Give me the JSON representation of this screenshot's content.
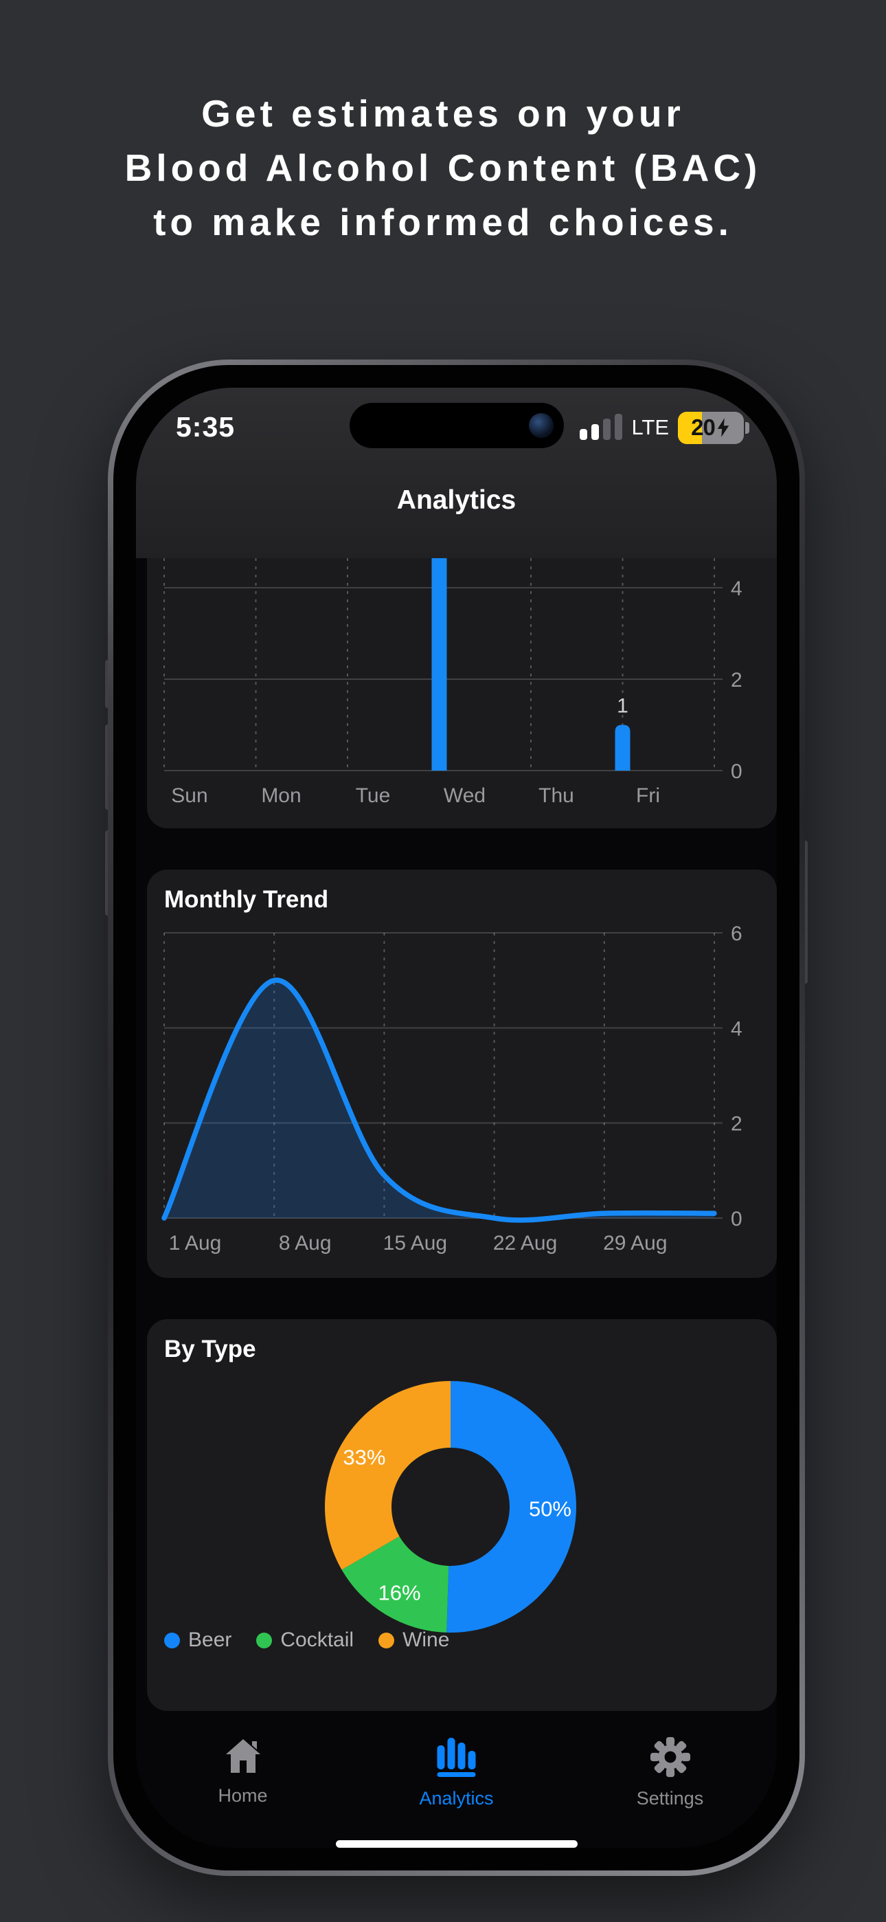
{
  "headline": {
    "lines": [
      "Get estimates on your",
      "Blood Alcohol Content (BAC)",
      "to make informed choices."
    ]
  },
  "phone": {
    "status_bar": {
      "time": "5:35",
      "network": "LTE",
      "battery_percent": "20",
      "battery_charging": true,
      "signal_bars_filled": 2,
      "signal_bars_total": 4
    },
    "nav_title": "Analytics",
    "tab_bar": {
      "items": [
        {
          "label": "Home",
          "active": false
        },
        {
          "label": "Analytics",
          "active": true
        },
        {
          "label": "Settings",
          "active": false
        }
      ]
    }
  },
  "chart_data": [
    {
      "type": "bar",
      "context": "weekly drinks by day (card top clipped under header)",
      "categories": [
        "Sun",
        "Mon",
        "Tue",
        "Wed",
        "Thu",
        "Fri"
      ],
      "values": [
        0,
        0,
        0,
        5,
        0,
        1
      ],
      "visible_bar_label": "1",
      "y_ticks": [
        0,
        2,
        4
      ],
      "ylim": [
        0,
        5
      ],
      "grid": "horizontal solid, vertical dashed",
      "legend": "none",
      "bar_color": "#1789f6",
      "axis_color": "#9a9aa0",
      "bar_label_color": "#d4d4d8"
    },
    {
      "type": "area",
      "title": "Monthly Trend",
      "x_tick_labels": [
        "1 Aug",
        "8 Aug",
        "15 Aug",
        "22 Aug",
        "29 Aug"
      ],
      "x_days": [
        0,
        7,
        14,
        21,
        28,
        35
      ],
      "values": [
        0,
        5,
        0.9,
        0,
        0.1,
        0.1
      ],
      "y_ticks": [
        0,
        2,
        4,
        6
      ],
      "ylim": [
        0,
        6
      ],
      "grid": "horizontal solid, vertical dashed",
      "legend": "none",
      "line_color": "#1789f6",
      "fill_color": "rgba(30,120,220,0.25)",
      "axis_color": "#9a9aa0"
    },
    {
      "type": "donut",
      "title": "By Type",
      "slices": [
        {
          "label": "Beer",
          "pct": 50,
          "color": "#1385f8"
        },
        {
          "label": "Cocktail",
          "pct": 16,
          "color": "#30c552"
        },
        {
          "label": "Wine",
          "pct": 33,
          "color": "#f8a01c"
        }
      ],
      "slice_label_color": "#ffffff",
      "legend_position": "bottom-left",
      "legend_text_color": "#b4b4b9"
    }
  ],
  "colors": {
    "page_bg": "#2f3034",
    "screen_bg": "#070709",
    "card_bg": "#1b1b1d",
    "header_top": "#2e2e31",
    "header_bottom": "#212124",
    "accent_blue": "#0a84ff",
    "inactive_gray": "#8e8e93",
    "battery_yellow": "#ffcd0c"
  }
}
